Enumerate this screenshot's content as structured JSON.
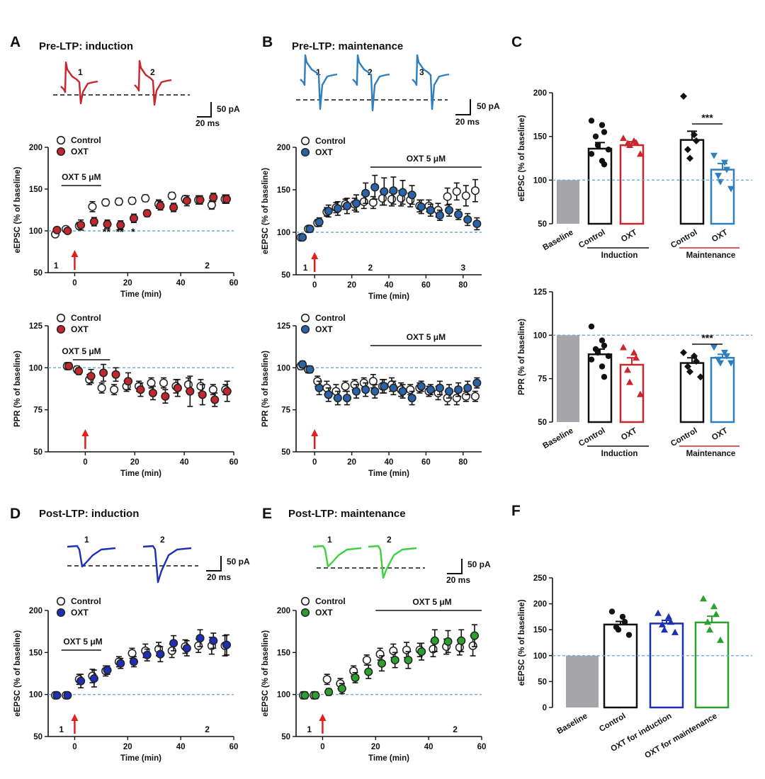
{
  "colors": {
    "red": "#c8252c",
    "redPt": "#c0282e",
    "blue": "#2a64a8",
    "trace_blue": "#2f7fbf",
    "navy": "#1d2fb5",
    "green": "#2ca02c",
    "trace_green": "#3cd23c",
    "gray": "#a6a6aa",
    "dashed": "#6fa8d8",
    "arrow": "#e02020"
  },
  "scale_bar": {
    "amp": "50 pA",
    "time": "20 ms"
  },
  "legend": {
    "control": "Control",
    "oxt": "OXT"
  },
  "drug_label": "OXT 5 μM",
  "axis_labels": {
    "time": "Time (min)",
    "epsc": "eEPSC (% of baseline)",
    "ppr": "PPR (% of baseline)"
  },
  "panels": {
    "A": {
      "label": "A",
      "title": "Pre-LTP: induction",
      "trace_labels": [
        "1",
        "2"
      ]
    },
    "B": {
      "label": "B",
      "title": "Pre-LTP: maintenance",
      "trace_labels": [
        "1",
        "2",
        "3"
      ]
    },
    "C": {
      "label": "C"
    },
    "D": {
      "label": "D",
      "title": "Post-LTP: induction",
      "trace_labels": [
        "1",
        "2"
      ]
    },
    "E": {
      "label": "E",
      "title": "Post-LTP: maintenance",
      "trace_labels": [
        "1",
        "2"
      ]
    },
    "F": {
      "label": "F"
    }
  },
  "chart_data": [
    {
      "id": "A_epsc",
      "type": "scatter",
      "title": "Pre-LTP: induction",
      "xlabel": "Time (min)",
      "ylabel": "eEPSC (% of baseline)",
      "xlim": [
        -10,
        60
      ],
      "ylim": [
        50,
        200
      ],
      "xticks": [
        0,
        20,
        40,
        60
      ],
      "yticks": [
        50,
        100,
        150,
        200
      ],
      "drug_bar": [
        -5,
        10
      ],
      "arrow_at": 0,
      "markers": [
        {
          "x": -7,
          "label": "1"
        },
        {
          "x": 50,
          "label": "2"
        }
      ],
      "stars": [
        {
          "x": 12,
          "text": "**"
        },
        {
          "x": 17,
          "text": "**"
        },
        {
          "x": 22,
          "text": "*"
        }
      ],
      "series": [
        {
          "name": "Control",
          "color": "open",
          "x": [
            -7,
            -3,
            2,
            7,
            12,
            17,
            22,
            27,
            32,
            37,
            42,
            47,
            52,
            57
          ],
          "y": [
            96,
            102,
            106,
            129,
            134,
            135,
            136,
            139,
            132,
            142,
            138,
            137,
            131,
            138
          ],
          "err": [
            3,
            3,
            4,
            6,
            4,
            4,
            4,
            4,
            5,
            4,
            4,
            5,
            5,
            5
          ]
        },
        {
          "name": "OXT",
          "color": "red",
          "x": [
            -7,
            -3,
            2,
            7,
            12,
            17,
            22,
            27,
            32,
            37,
            42,
            47,
            52,
            57
          ],
          "y": [
            101,
            100,
            107,
            111,
            108,
            107,
            115,
            121,
            130,
            128,
            136,
            137,
            140,
            138
          ],
          "err": [
            3,
            3,
            6,
            5,
            5,
            5,
            5,
            4,
            5,
            5,
            6,
            5,
            5,
            5
          ]
        }
      ]
    },
    {
      "id": "A_ppr",
      "type": "scatter",
      "xlabel": "Time (min)",
      "ylabel": "PPR (% of baseline)",
      "xlim": [
        -15,
        60
      ],
      "ylim": [
        50,
        125
      ],
      "xticks": [
        0,
        20,
        40,
        60
      ],
      "yticks": [
        50,
        75,
        100,
        125
      ],
      "drug_bar": [
        -5,
        10
      ],
      "arrow_at": 0,
      "series": [
        {
          "name": "Control",
          "color": "open",
          "x": [
            -7,
            -3,
            2,
            7,
            12,
            17,
            22,
            27,
            32,
            37,
            42,
            47,
            52,
            57
          ],
          "y": [
            101,
            99,
            93,
            88,
            87,
            89,
            89,
            91,
            91,
            89,
            90,
            89,
            87,
            87
          ],
          "err": [
            2,
            2,
            3,
            3,
            3,
            3,
            3,
            3,
            3,
            4,
            4,
            4,
            3,
            3
          ]
        },
        {
          "name": "OXT",
          "color": "red",
          "x": [
            -7,
            -3,
            2,
            7,
            12,
            17,
            22,
            27,
            32,
            37,
            42,
            47,
            52,
            57
          ],
          "y": [
            101,
            98,
            95,
            97,
            96,
            92,
            87,
            85,
            83,
            88,
            86,
            84,
            81,
            86
          ],
          "err": [
            2,
            2,
            4,
            5,
            4,
            5,
            4,
            4,
            4,
            5,
            9,
            6,
            4,
            6
          ]
        }
      ]
    },
    {
      "id": "B_epsc",
      "type": "scatter",
      "title": "Pre-LTP: maintenance",
      "xlabel": "Time (min)",
      "ylabel": "eEPSC (% of baseline)",
      "xlim": [
        -10,
        90
      ],
      "ylim": [
        50,
        200
      ],
      "xticks": [
        0,
        20,
        40,
        60,
        80
      ],
      "yticks": [
        50,
        100,
        150,
        200
      ],
      "drug_bar": [
        30,
        90
      ],
      "arrow_at": 0,
      "markers": [
        {
          "x": -5,
          "label": "1"
        },
        {
          "x": 30,
          "label": "2"
        },
        {
          "x": 80,
          "label": "3"
        }
      ],
      "series": [
        {
          "name": "Control",
          "color": "open",
          "x": [
            -7,
            -3,
            2,
            7,
            12,
            17,
            22,
            27,
            32,
            37,
            42,
            47,
            52,
            57,
            62,
            67,
            72,
            77,
            82,
            87
          ],
          "y": [
            94,
            104,
            111,
            124,
            129,
            133,
            133,
            136,
            135,
            140,
            139,
            140,
            138,
            131,
            131,
            126,
            142,
            148,
            143,
            149
          ],
          "err": [
            3,
            3,
            4,
            5,
            6,
            6,
            7,
            8,
            7,
            8,
            8,
            9,
            8,
            7,
            7,
            8,
            10,
            10,
            12,
            13
          ]
        },
        {
          "name": "OXT",
          "color": "blue",
          "x": [
            -7,
            -3,
            2,
            7,
            12,
            17,
            22,
            27,
            32,
            37,
            42,
            47,
            52,
            57,
            62,
            67,
            72,
            77,
            82,
            87
          ],
          "y": [
            94,
            104,
            112,
            125,
            128,
            131,
            134,
            146,
            153,
            148,
            149,
            147,
            144,
            130,
            126,
            120,
            126,
            121,
            115,
            110
          ],
          "err": [
            3,
            3,
            5,
            7,
            8,
            9,
            10,
            12,
            14,
            16,
            16,
            14,
            11,
            8,
            7,
            6,
            7,
            6,
            7,
            7
          ]
        }
      ]
    },
    {
      "id": "B_ppr",
      "type": "scatter",
      "xlabel": "Time (min)",
      "ylabel": "PPR (% of baseline)",
      "xlim": [
        -10,
        90
      ],
      "ylim": [
        50,
        125
      ],
      "xticks": [
        0,
        20,
        40,
        60,
        80
      ],
      "yticks": [
        50,
        75,
        100,
        125
      ],
      "drug_bar": [
        30,
        90
      ],
      "arrow_at": 0,
      "series": [
        {
          "name": "Control",
          "color": "open",
          "x": [
            -7,
            -3,
            2,
            7,
            12,
            17,
            22,
            27,
            32,
            37,
            42,
            47,
            52,
            57,
            62,
            67,
            72,
            77,
            82,
            87
          ],
          "y": [
            101,
            99,
            92,
            88,
            86,
            89,
            90,
            91,
            92,
            89,
            90,
            87,
            87,
            88,
            86,
            85,
            82,
            82,
            83,
            83
          ],
          "err": [
            2,
            2,
            3,
            4,
            4,
            3,
            3,
            3,
            4,
            4,
            4,
            4,
            3,
            3,
            3,
            4,
            4,
            4,
            3,
            3
          ]
        },
        {
          "name": "OXT",
          "color": "blue",
          "x": [
            -7,
            -3,
            2,
            7,
            12,
            17,
            22,
            27,
            32,
            37,
            42,
            47,
            52,
            57,
            62,
            67,
            72,
            77,
            82,
            87
          ],
          "y": [
            102,
            99,
            88,
            84,
            82,
            82,
            86,
            87,
            86,
            89,
            88,
            86,
            82,
            89,
            87,
            88,
            86,
            87,
            88,
            91
          ],
          "err": [
            2,
            2,
            4,
            4,
            4,
            4,
            4,
            4,
            4,
            4,
            4,
            4,
            4,
            3,
            3,
            4,
            4,
            4,
            4,
            3
          ]
        }
      ]
    },
    {
      "id": "C_epsc",
      "type": "bar",
      "ylabel": "eEPSC (% of baseline)",
      "ylim": [
        50,
        200
      ],
      "yticks": [
        50,
        100,
        150,
        200
      ],
      "categories": [
        "Baseline",
        "Control",
        "OXT",
        "Control",
        "OXT"
      ],
      "groups": [
        "Induction",
        "Maintenance"
      ],
      "values": [
        100,
        136,
        140,
        146,
        112
      ],
      "errors": [
        0,
        7,
        4,
        10,
        7
      ],
      "points": [
        [],
        [
          168,
          163,
          155,
          150,
          140,
          135,
          130,
          122,
          118
        ],
        [
          148,
          145,
          143,
          142,
          140,
          130
        ],
        [
          196,
          152,
          145,
          135,
          125
        ],
        [
          128,
          120,
          112,
          105,
          98,
          90
        ]
      ],
      "significance": [
        {
          "between": [
            3,
            4
          ],
          "text": "***"
        }
      ]
    },
    {
      "id": "C_ppr",
      "type": "bar",
      "ylabel": "PPR (% of baseline)",
      "ylim": [
        50,
        125
      ],
      "yticks": [
        50,
        75,
        100,
        125
      ],
      "categories": [
        "Baseline",
        "Control",
        "OXT",
        "Control",
        "OXT"
      ],
      "groups": [
        "Induction",
        "Maintenance"
      ],
      "values": [
        100,
        89,
        83,
        84,
        87
      ],
      "errors": [
        0,
        3,
        4,
        3,
        2
      ],
      "points": [
        [],
        [
          105,
          97,
          94,
          92,
          90,
          88,
          86,
          82,
          76
        ],
        [
          93,
          90,
          87,
          80,
          73,
          66
        ],
        [
          90,
          88,
          85,
          82,
          79,
          76
        ],
        [
          93,
          90,
          88,
          86,
          84,
          84
        ]
      ],
      "significance": [
        {
          "between": [
            3,
            4
          ],
          "text": "***"
        }
      ]
    },
    {
      "id": "D_epsc",
      "type": "scatter",
      "title": "Post-LTP: induction",
      "xlabel": "Time (min)",
      "ylabel": "eEPSC (% of baseline)",
      "xlim": [
        -10,
        60
      ],
      "ylim": [
        50,
        200
      ],
      "xticks": [
        0,
        20,
        40,
        60
      ],
      "yticks": [
        50,
        100,
        150,
        200
      ],
      "drug_bar": [
        -5,
        10
      ],
      "arrow_at": 0,
      "markers": [
        {
          "x": -5,
          "label": "1"
        },
        {
          "x": 50,
          "label": "2"
        }
      ],
      "series": [
        {
          "name": "Control",
          "color": "open",
          "x": [
            -7,
            -3,
            2,
            7,
            12,
            17,
            22,
            27,
            32,
            37,
            42,
            47,
            52,
            57
          ],
          "y": [
            99,
            99,
            118,
            122,
            128,
            139,
            149,
            152,
            154,
            152,
            157,
            158,
            158,
            158
          ],
          "err": [
            3,
            3,
            6,
            8,
            6,
            6,
            6,
            8,
            8,
            8,
            8,
            8,
            10,
            12
          ]
        },
        {
          "name": "OXT",
          "color": "navy",
          "x": [
            -7,
            -3,
            2,
            7,
            12,
            17,
            22,
            27,
            32,
            37,
            42,
            47,
            52,
            57
          ],
          "y": [
            99,
            99,
            116,
            119,
            129,
            137,
            139,
            147,
            148,
            161,
            155,
            167,
            164,
            159
          ],
          "err": [
            3,
            3,
            8,
            10,
            5,
            6,
            6,
            7,
            9,
            9,
            9,
            10,
            9,
            12
          ]
        }
      ]
    },
    {
      "id": "E_epsc",
      "type": "scatter",
      "title": "Post-LTP: maintenance",
      "xlabel": "Time (min)",
      "ylabel": "eEPSC (% of baseline)",
      "xlim": [
        -10,
        60
      ],
      "ylim": [
        50,
        200
      ],
      "xticks": [
        0,
        20,
        40,
        60
      ],
      "yticks": [
        50,
        100,
        150,
        200
      ],
      "drug_bar": [
        20,
        60
      ],
      "arrow_at": 0,
      "markers": [
        {
          "x": -5,
          "label": "1"
        },
        {
          "x": 50,
          "label": "2"
        }
      ],
      "series": [
        {
          "name": "Control",
          "color": "open",
          "x": [
            -7,
            -3,
            2,
            7,
            12,
            17,
            22,
            27,
            32,
            37,
            42,
            47,
            52,
            57
          ],
          "y": [
            99,
            99,
            118,
            113,
            128,
            141,
            148,
            152,
            153,
            153,
            154,
            157,
            156,
            158
          ],
          "err": [
            4,
            4,
            6,
            6,
            6,
            6,
            7,
            8,
            9,
            8,
            9,
            9,
            9,
            12
          ]
        },
        {
          "name": "OXT",
          "color": "green",
          "x": [
            -7,
            -3,
            2,
            7,
            12,
            17,
            22,
            27,
            32,
            37,
            42,
            47,
            52,
            57
          ],
          "y": [
            99,
            99,
            103,
            107,
            120,
            127,
            137,
            141,
            141,
            151,
            164,
            163,
            164,
            170
          ],
          "err": [
            4,
            4,
            4,
            6,
            6,
            8,
            9,
            9,
            10,
            10,
            13,
            13,
            13,
            13
          ]
        }
      ]
    },
    {
      "id": "F_epsc",
      "type": "bar",
      "ylabel": "eEPSC (% of baseline)",
      "ylim": [
        0,
        250
      ],
      "yticks": [
        0,
        50,
        100,
        150,
        200,
        250
      ],
      "categories": [
        "Baseline",
        "Control",
        "OXT for induction",
        "OXT for maintenance"
      ],
      "values": [
        100,
        160,
        162,
        164
      ],
      "errors": [
        0,
        6,
        6,
        12
      ],
      "points": [
        [],
        [
          185,
          175,
          165,
          155,
          150,
          140
        ],
        [
          182,
          175,
          165,
          160,
          150,
          145
        ],
        [
          210,
          195,
          180,
          165,
          150,
          130
        ]
      ]
    }
  ]
}
